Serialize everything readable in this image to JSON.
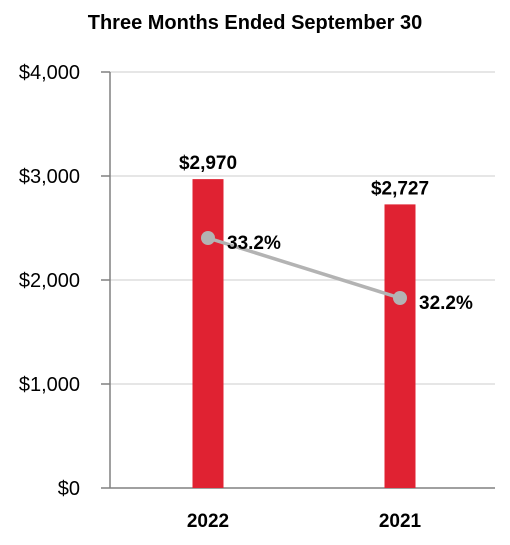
{
  "chart_data": {
    "type": "bar",
    "title": "Three Months Ended September 30",
    "categories": [
      "2022",
      "2021"
    ],
    "values": [
      2970,
      2727
    ],
    "value_labels": [
      "$2,970",
      "$2,727"
    ],
    "ylim": [
      0,
      4000
    ],
    "yticks": [
      0,
      1000,
      2000,
      3000,
      4000
    ],
    "ytick_labels": [
      "$0",
      "$1,000",
      "$2,000",
      "$3,000",
      "$4,000"
    ],
    "grid": true,
    "overlay_line": {
      "values": [
        33.2,
        32.2
      ],
      "labels": [
        "33.2%",
        "32.2%"
      ]
    },
    "colors": {
      "bar": "#e02232",
      "line": "#b3b3b3",
      "marker": "#b3b3b3",
      "grid": "#dddddd",
      "axis": "#808080"
    }
  }
}
